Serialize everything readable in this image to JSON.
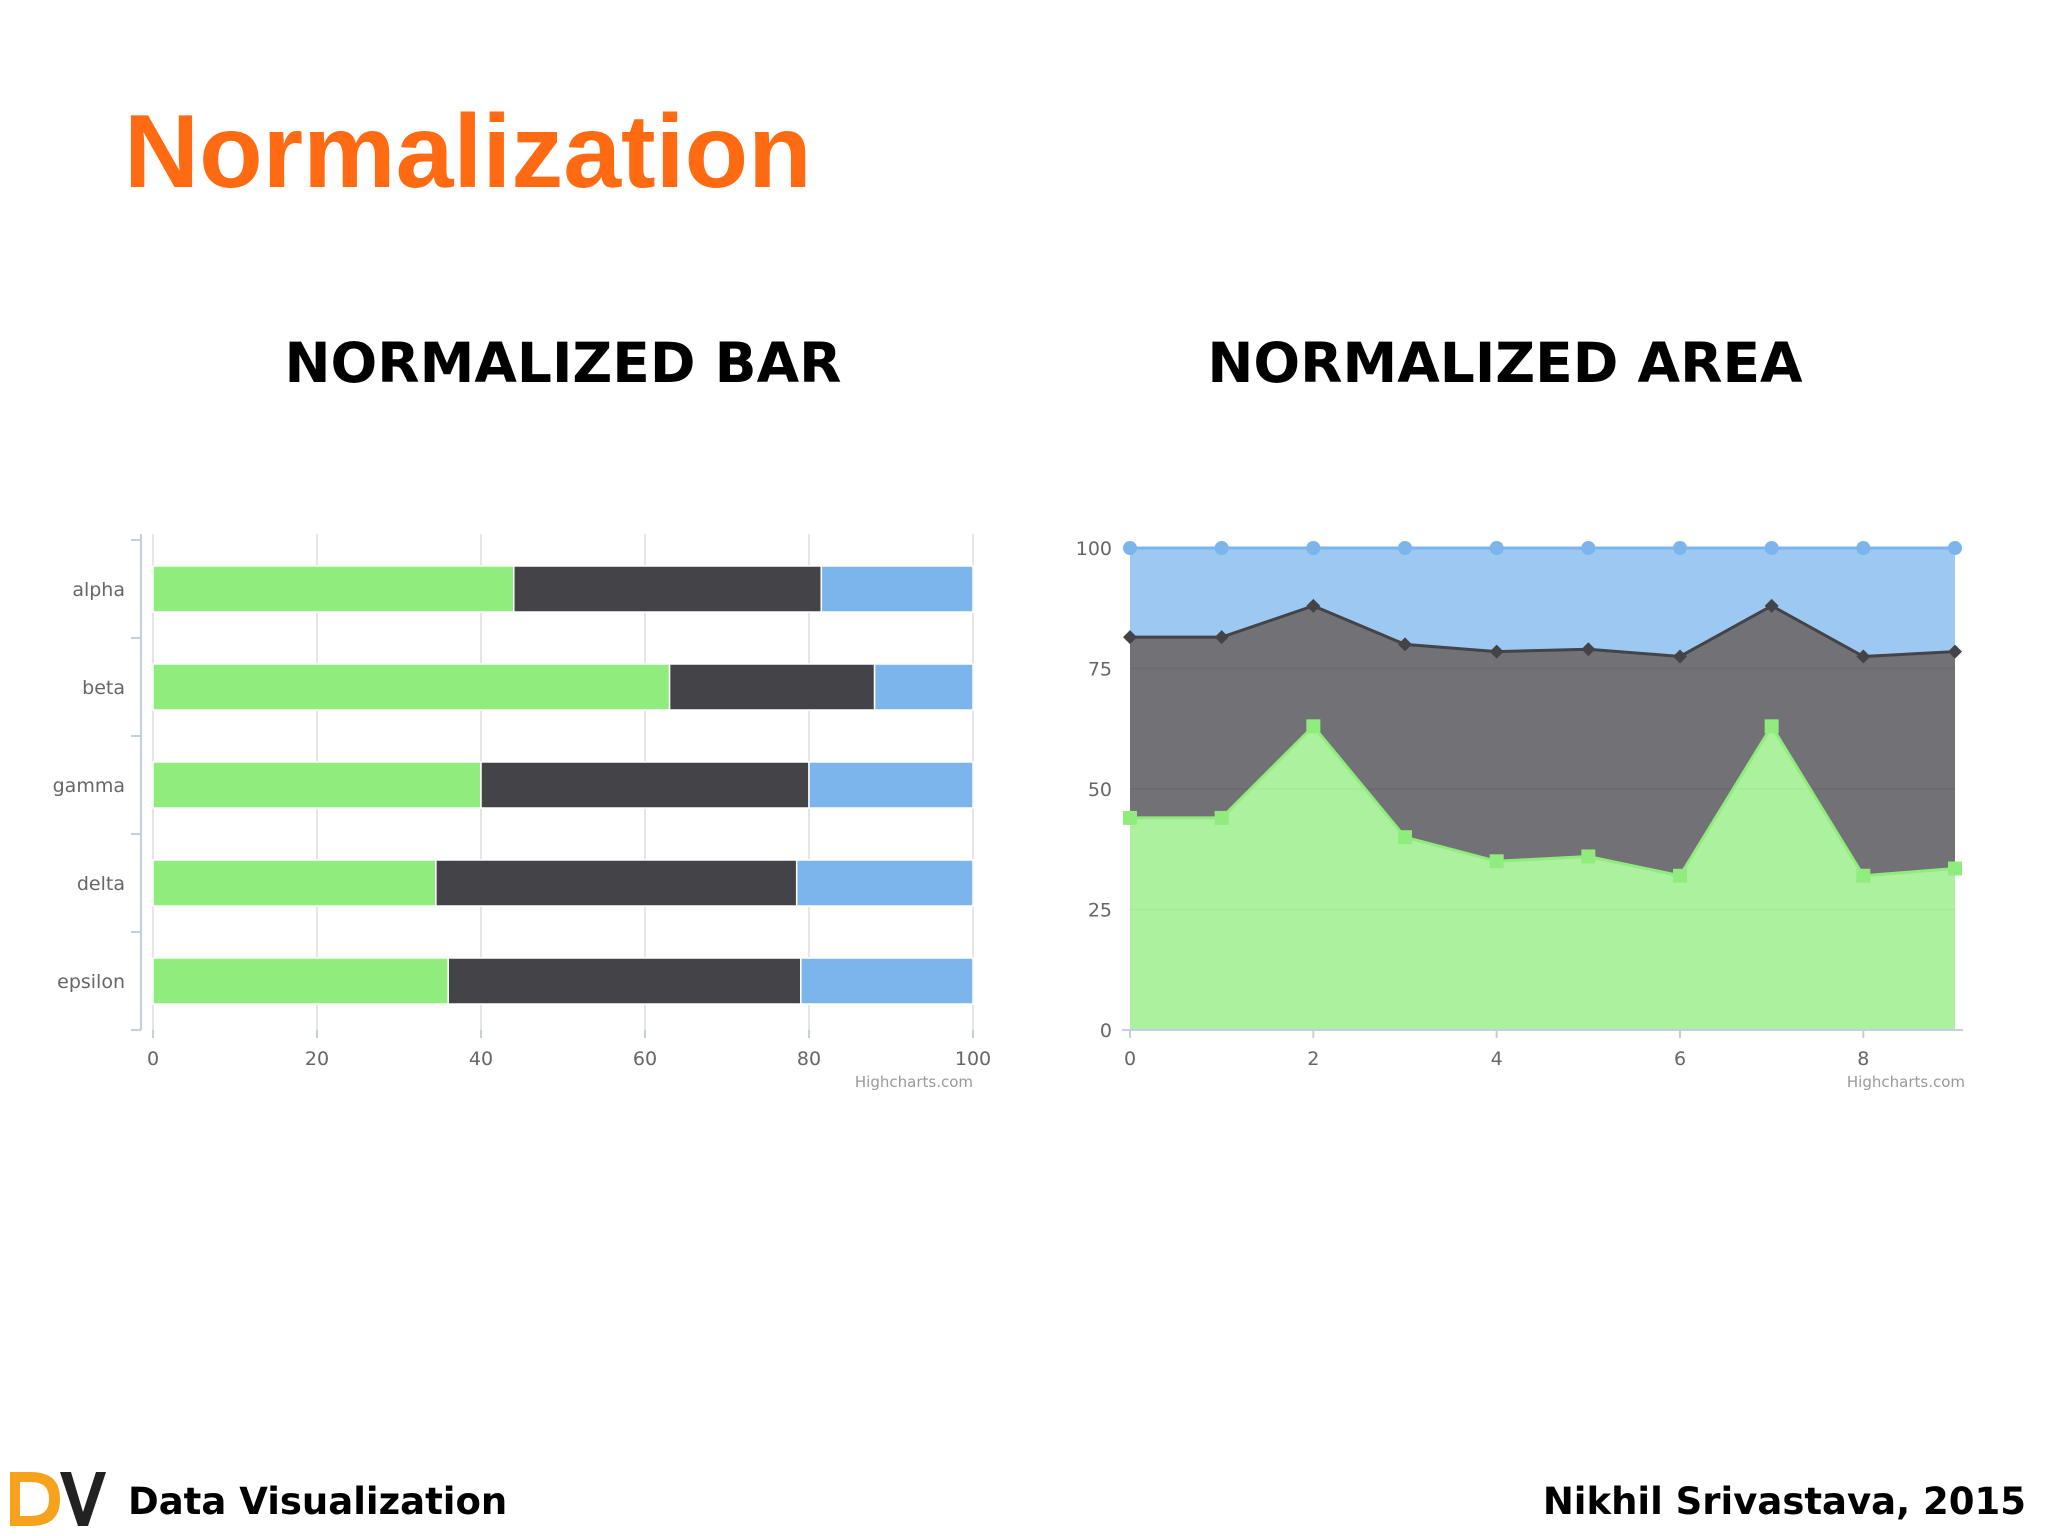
{
  "slide": {
    "title": "Normalization",
    "footer_left": "Data Visualization",
    "footer_right": "Nikhil Srivastava, 2015",
    "logo_text": "DV",
    "colors": {
      "title": "#ff6a13",
      "logo_d": "#f7a21c",
      "logo_v": "#222222"
    }
  },
  "headings": {
    "left": "NORMALIZED BAR",
    "right": "NORMALIZED AREA"
  },
  "chart_data": [
    {
      "type": "bar",
      "stacking": "percent",
      "orientation": "horizontal",
      "categories": [
        "alpha",
        "beta",
        "gamma",
        "delta",
        "epsilon"
      ],
      "series": [
        {
          "color": "#90ed7d",
          "values": [
            44,
            63,
            40,
            34.5,
            36
          ]
        },
        {
          "color": "#434348",
          "values": [
            37.5,
            25,
            40,
            44,
            43
          ]
        },
        {
          "color": "#7cb5ec",
          "values": [
            18.5,
            12,
            20,
            21.5,
            21
          ]
        }
      ],
      "xlim": [
        0,
        100
      ],
      "xticks": [
        "0",
        "20",
        "40",
        "60",
        "80",
        "100"
      ],
      "grid": true,
      "credit": "Highcharts.com"
    },
    {
      "type": "area",
      "stacking": "percent",
      "x": [
        0,
        1,
        2,
        3,
        4,
        5,
        6,
        7,
        8,
        9
      ],
      "series": [
        {
          "color": "#90ed7d",
          "marker": "square",
          "values": [
            44,
            44,
            63,
            40,
            35,
            36,
            32,
            63,
            32,
            33.5
          ]
        },
        {
          "color": "#434348",
          "marker": "diamond",
          "values": [
            37.5,
            37.5,
            25,
            40,
            43.5,
            43,
            45.5,
            25,
            45.5,
            45
          ]
        },
        {
          "color": "#7cb5ec",
          "marker": "circle",
          "values": [
            18.5,
            18.5,
            12,
            20,
            21.5,
            21,
            22.5,
            12,
            22.5,
            21.5
          ]
        }
      ],
      "ylim": [
        0,
        100
      ],
      "yticks": [
        "0",
        "25",
        "50",
        "75",
        "100"
      ],
      "xticks": [
        "0",
        "2",
        "4",
        "6",
        "8"
      ],
      "grid": true,
      "credit": "Highcharts.com"
    }
  ]
}
